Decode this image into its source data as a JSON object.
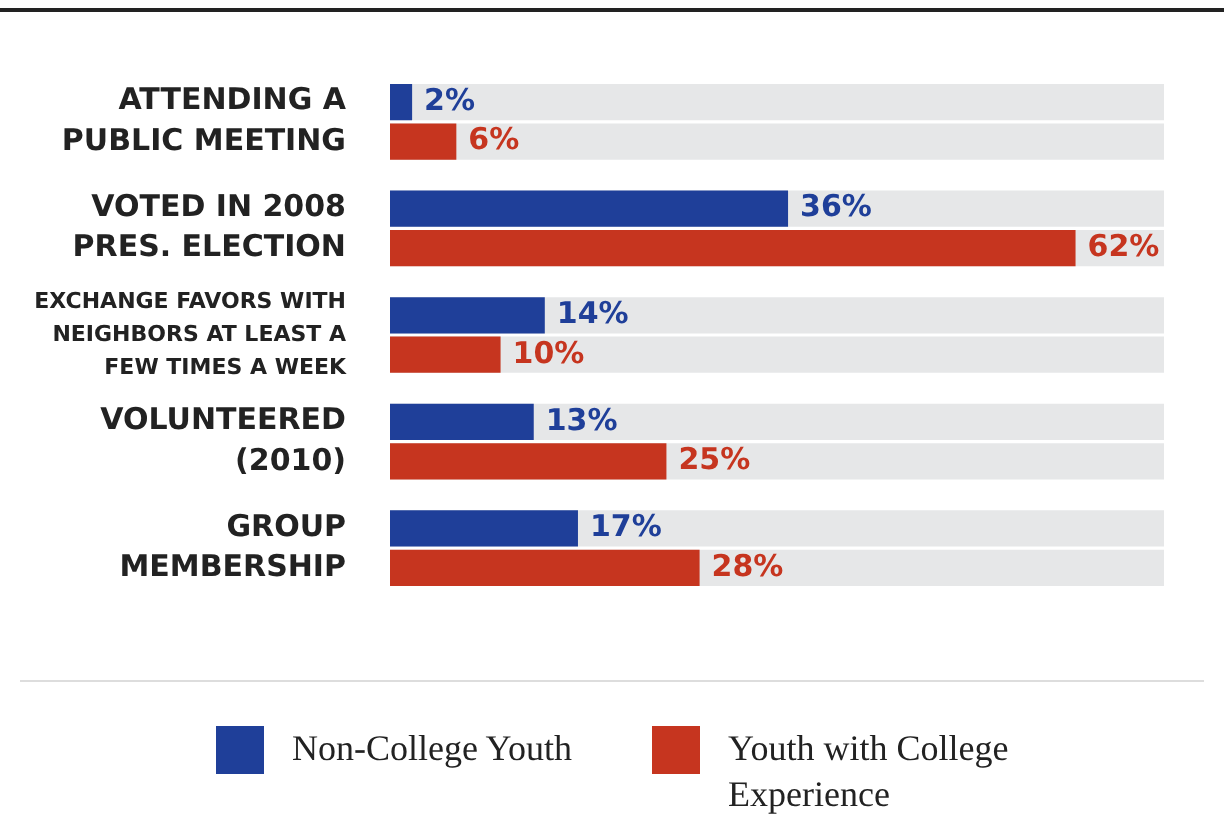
{
  "chart_data": {
    "type": "bar",
    "orientation": "horizontal",
    "categories": [
      "ATTENDING A PUBLIC MEETING",
      "VOTED IN 2008 PRES. ELECTION",
      "EXCHANGE FAVORS WITH NEIGHBORS AT LEAST A FEW TIMES A WEEK",
      "VOLUNTEERED (2010)",
      "GROUP MEMBERSHIP"
    ],
    "series": [
      {
        "name": "Non-College Youth",
        "color": "#1f3f99",
        "values": [
          2,
          36,
          14,
          13,
          17
        ],
        "value_labels": [
          "2%",
          "36%",
          "14%",
          "13%",
          "17%"
        ]
      },
      {
        "name": "Youth with College Experience",
        "color": "#c6351f",
        "values": [
          6,
          62,
          10,
          25,
          28
        ],
        "value_labels": [
          "6%",
          "62%",
          "10%",
          "25%",
          "28%"
        ]
      }
    ],
    "tick_labels": "y",
    "grid": false,
    "legend": "bottom"
  }
}
